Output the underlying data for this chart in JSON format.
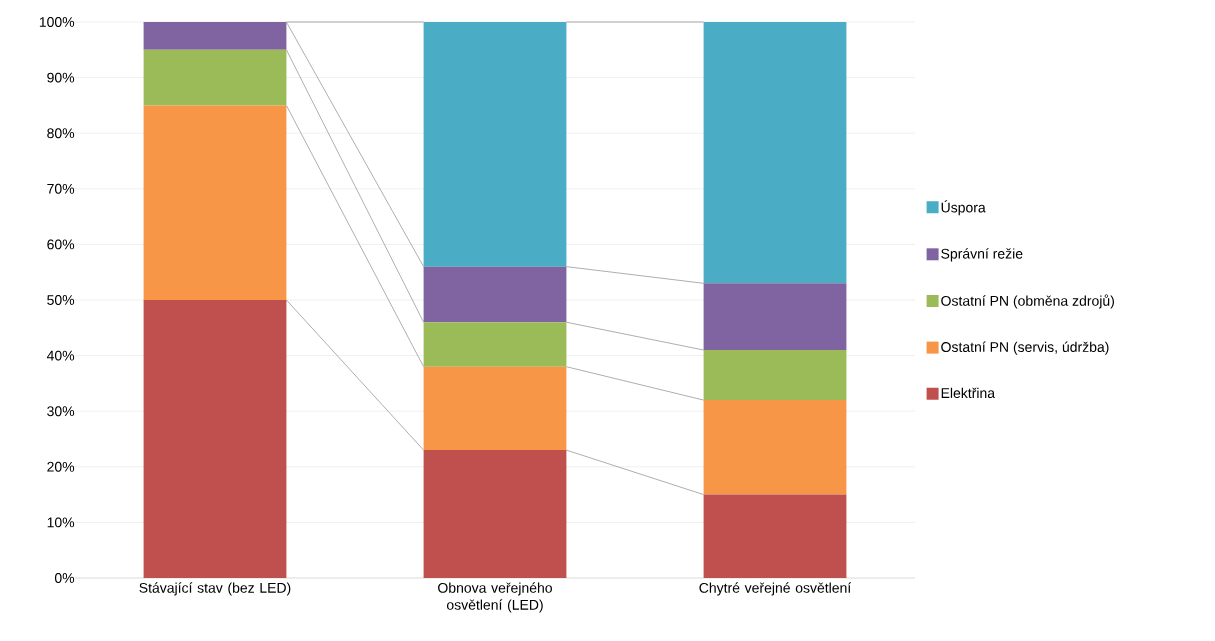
{
  "chart_data": {
    "type": "bar",
    "stacked": true,
    "categories": [
      "Stávající stav (bez LED)",
      "Obnova veřejného osvětlení (LED)",
      "Chytré veřejné osvětlení"
    ],
    "series": [
      {
        "name": "Elektřina",
        "color": "#c0504d",
        "values": [
          50,
          23,
          15
        ]
      },
      {
        "name": "Ostatní PN (servis, údržba)",
        "color": "#f79646",
        "values": [
          35,
          15,
          17
        ]
      },
      {
        "name": "Ostatní PN (obměna zdrojů)",
        "color": "#9bbb59",
        "values": [
          10,
          8,
          9
        ]
      },
      {
        "name": "Správní režie",
        "color": "#8064a2",
        "values": [
          5,
          10,
          12
        ]
      },
      {
        "name": "Úspora",
        "color": "#4bacc6",
        "values": [
          0,
          44,
          47
        ]
      }
    ],
    "ylim": [
      0,
      100
    ],
    "yticks": [
      {
        "value": 0,
        "label": "0%"
      },
      {
        "value": 10,
        "label": "10%"
      },
      {
        "value": 20,
        "label": "20%"
      },
      {
        "value": 30,
        "label": "30%"
      },
      {
        "value": 40,
        "label": "40%"
      },
      {
        "value": 50,
        "label": "50%"
      },
      {
        "value": 60,
        "label": "60%"
      },
      {
        "value": 70,
        "label": "70%"
      },
      {
        "value": 80,
        "label": "80%"
      },
      {
        "value": 90,
        "label": "90%"
      },
      {
        "value": 100,
        "label": "100%"
      }
    ],
    "grid": "y",
    "legend": "right"
  }
}
